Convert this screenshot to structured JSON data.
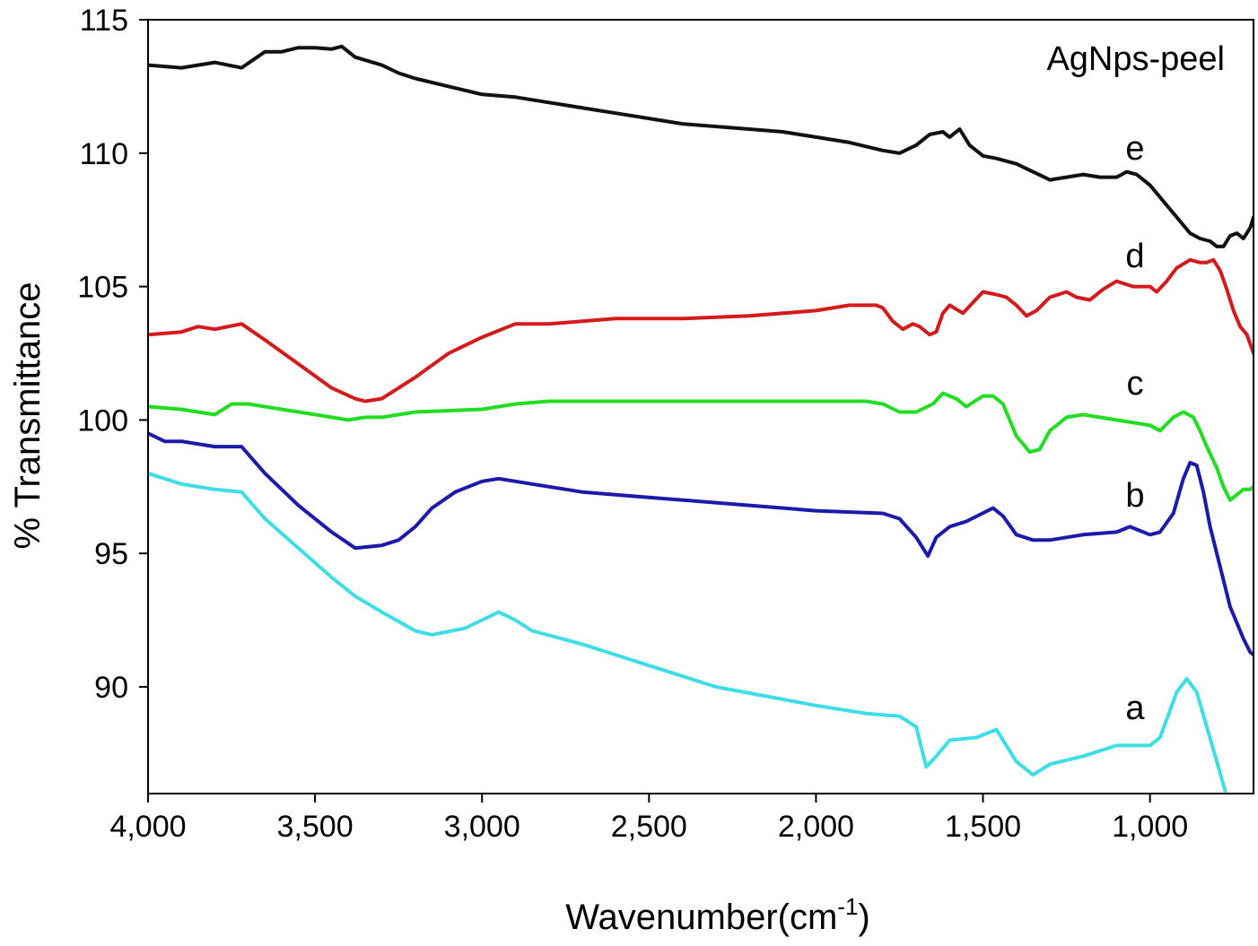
{
  "chart_data": {
    "type": "line",
    "title": "",
    "xlabel": "Wavenumber(cm",
    "xlabel_superscript": "-1",
    "xlabel_suffix": ")",
    "ylabel": "% Transmittance",
    "xlim": [
      4000,
      690
    ],
    "ylim": [
      86,
      115
    ],
    "x_reversed": true,
    "grid": false,
    "legend": "none",
    "x_ticks": [
      4000,
      3500,
      3000,
      2500,
      2000,
      1500,
      1000
    ],
    "x_tick_labels": [
      "4,000",
      "3,500",
      "3,000",
      "2,500",
      "2,000",
      "1,500",
      "1,000"
    ],
    "y_ticks": [
      90,
      95,
      100,
      105,
      110,
      115
    ],
    "y_tick_labels": [
      "90",
      "95",
      "100",
      "105",
      "110",
      "115"
    ],
    "annotations": [
      {
        "text": "AgNps-peel",
        "position": "top-right"
      }
    ],
    "series": [
      {
        "name": "a",
        "color": "#3fdde6",
        "x": [
          4000,
          3900,
          3800,
          3720,
          3650,
          3550,
          3450,
          3380,
          3300,
          3200,
          3150,
          3050,
          2950,
          2900,
          2850,
          2700,
          2500,
          2300,
          2000,
          1850,
          1750,
          1700,
          1670,
          1640,
          1600,
          1520,
          1460,
          1400,
          1350,
          1300,
          1200,
          1100,
          1060,
          1000,
          970,
          920,
          890,
          860,
          830,
          800,
          775
        ],
        "y": [
          98.0,
          97.6,
          97.4,
          97.3,
          96.3,
          95.2,
          94.1,
          93.4,
          92.8,
          92.1,
          91.95,
          92.2,
          92.8,
          92.5,
          92.1,
          91.6,
          90.8,
          90.0,
          89.3,
          89.0,
          88.9,
          88.5,
          87.0,
          87.4,
          88.0,
          88.1,
          88.4,
          87.2,
          86.7,
          87.1,
          87.4,
          87.8,
          87.8,
          87.8,
          88.1,
          89.8,
          90.3,
          89.8,
          88.5,
          87.2,
          86.1
        ]
      },
      {
        "name": "b",
        "color": "#1b1aaa",
        "x": [
          4000,
          3950,
          3900,
          3800,
          3720,
          3650,
          3550,
          3450,
          3380,
          3300,
          3250,
          3200,
          3150,
          3080,
          3000,
          2950,
          2850,
          2700,
          2500,
          2300,
          2000,
          1800,
          1750,
          1700,
          1665,
          1640,
          1600,
          1550,
          1470,
          1440,
          1400,
          1350,
          1300,
          1200,
          1100,
          1060,
          1000,
          970,
          930,
          900,
          880,
          860,
          840,
          820,
          800,
          780,
          760,
          740,
          720,
          700,
          690
        ],
        "y": [
          99.5,
          99.2,
          99.2,
          99.0,
          99.0,
          98.0,
          96.8,
          95.8,
          95.2,
          95.3,
          95.5,
          96.0,
          96.7,
          97.3,
          97.7,
          97.8,
          97.6,
          97.3,
          97.1,
          96.9,
          96.6,
          96.5,
          96.3,
          95.6,
          94.9,
          95.6,
          96.0,
          96.2,
          96.7,
          96.4,
          95.7,
          95.5,
          95.5,
          95.7,
          95.8,
          96.0,
          95.7,
          95.8,
          96.5,
          97.8,
          98.4,
          98.3,
          97.3,
          96.0,
          95.0,
          94.0,
          93.0,
          92.4,
          91.8,
          91.3,
          91.2
        ]
      },
      {
        "name": "c",
        "color": "#22dd22",
        "x": [
          4000,
          3900,
          3850,
          3800,
          3750,
          3700,
          3600,
          3500,
          3450,
          3400,
          3350,
          3300,
          3200,
          3000,
          2900,
          2800,
          2500,
          2200,
          2000,
          1850,
          1800,
          1750,
          1700,
          1650,
          1620,
          1580,
          1550,
          1500,
          1470,
          1440,
          1400,
          1360,
          1330,
          1300,
          1250,
          1200,
          1100,
          1050,
          1000,
          970,
          930,
          900,
          870,
          850,
          830,
          800,
          780,
          760,
          740,
          720,
          700,
          690
        ],
        "y": [
          100.5,
          100.4,
          100.3,
          100.2,
          100.6,
          100.6,
          100.4,
          100.2,
          100.1,
          100.0,
          100.1,
          100.1,
          100.3,
          100.4,
          100.6,
          100.7,
          100.7,
          100.7,
          100.7,
          100.7,
          100.6,
          100.3,
          100.3,
          100.6,
          101.0,
          100.8,
          100.5,
          100.9,
          100.9,
          100.6,
          99.4,
          98.8,
          98.9,
          99.6,
          100.1,
          100.2,
          100.0,
          99.9,
          99.8,
          99.6,
          100.1,
          100.3,
          100.1,
          99.6,
          99.0,
          98.2,
          97.5,
          97.0,
          97.2,
          97.4,
          97.4,
          97.5
        ]
      },
      {
        "name": "d",
        "color": "#d41a1a",
        "x": [
          4000,
          3900,
          3850,
          3800,
          3720,
          3650,
          3550,
          3450,
          3380,
          3350,
          3300,
          3250,
          3200,
          3100,
          3000,
          2900,
          2800,
          2600,
          2400,
          2200,
          2000,
          1900,
          1820,
          1800,
          1770,
          1740,
          1710,
          1690,
          1660,
          1640,
          1620,
          1600,
          1560,
          1500,
          1460,
          1430,
          1400,
          1370,
          1340,
          1300,
          1250,
          1220,
          1180,
          1140,
          1100,
          1050,
          1000,
          980,
          950,
          920,
          880,
          850,
          830,
          810,
          790,
          770,
          750,
          730,
          710,
          690
        ],
        "y": [
          103.2,
          103.3,
          103.5,
          103.4,
          103.6,
          103.0,
          102.1,
          101.2,
          100.8,
          100.7,
          100.8,
          101.2,
          101.6,
          102.5,
          103.1,
          103.6,
          103.6,
          103.8,
          103.8,
          103.9,
          104.1,
          104.3,
          104.3,
          104.2,
          103.7,
          103.4,
          103.6,
          103.5,
          103.2,
          103.3,
          104.0,
          104.3,
          104.0,
          104.8,
          104.7,
          104.6,
          104.3,
          103.9,
          104.1,
          104.6,
          104.8,
          104.6,
          104.5,
          104.9,
          105.2,
          105.0,
          105.0,
          104.8,
          105.2,
          105.7,
          106.0,
          105.9,
          105.9,
          106.0,
          105.6,
          104.9,
          104.1,
          103.5,
          103.2,
          102.5
        ]
      },
      {
        "name": "e",
        "color": "#111111",
        "x": [
          4000,
          3900,
          3850,
          3800,
          3720,
          3650,
          3600,
          3550,
          3500,
          3450,
          3420,
          3380,
          3300,
          3250,
          3200,
          3100,
          3000,
          2900,
          2800,
          2600,
          2500,
          2400,
          2200,
          2100,
          2000,
          1900,
          1800,
          1750,
          1700,
          1660,
          1620,
          1600,
          1570,
          1540,
          1500,
          1460,
          1400,
          1350,
          1300,
          1250,
          1200,
          1150,
          1100,
          1070,
          1040,
          1000,
          960,
          920,
          880,
          850,
          820,
          800,
          780,
          760,
          740,
          720,
          700,
          690
        ],
        "y": [
          113.3,
          113.2,
          113.3,
          113.4,
          113.2,
          113.8,
          113.8,
          113.95,
          113.95,
          113.9,
          114.0,
          113.6,
          113.3,
          113.0,
          112.8,
          112.5,
          112.2,
          112.1,
          111.9,
          111.5,
          111.3,
          111.1,
          110.9,
          110.8,
          110.6,
          110.4,
          110.1,
          110.0,
          110.3,
          110.7,
          110.8,
          110.6,
          110.9,
          110.3,
          109.9,
          109.8,
          109.6,
          109.3,
          109.0,
          109.1,
          109.2,
          109.1,
          109.1,
          109.3,
          109.2,
          108.8,
          108.2,
          107.6,
          107.0,
          106.8,
          106.7,
          106.5,
          106.5,
          106.9,
          107.0,
          106.8,
          107.2,
          107.6
        ]
      }
    ]
  }
}
